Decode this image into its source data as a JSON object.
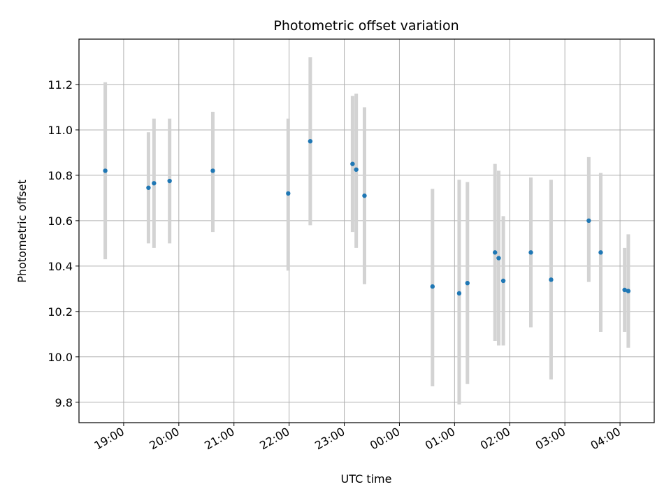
{
  "chart_data": {
    "type": "scatter",
    "title": "Photometric offset variation",
    "xlabel": "UTC time",
    "ylabel": "Photometric offset",
    "x_ticks": [
      "19:00",
      "20:00",
      "21:00",
      "22:00",
      "23:00",
      "00:00",
      "01:00",
      "02:00",
      "03:00",
      "04:00"
    ],
    "x_tick_hours": [
      19,
      20,
      21,
      22,
      23,
      24,
      25,
      26,
      27,
      28
    ],
    "xlim": [
      18.19,
      28.62
    ],
    "y_ticks": [
      "9.8",
      "10.0",
      "10.2",
      "10.4",
      "10.6",
      "10.8",
      "11.0",
      "11.2"
    ],
    "y_tick_values": [
      9.8,
      10.0,
      10.2,
      10.4,
      10.6,
      10.8,
      11.0,
      11.2
    ],
    "ylim": [
      9.71,
      11.4
    ],
    "grid": true,
    "marker_color": "#1f77b4",
    "errorbar_color": "#d3d3d3",
    "points": [
      {
        "x": "18:40",
        "y": 10.82,
        "low": 10.43,
        "high": 11.21
      },
      {
        "x": "19:27",
        "y": 10.745,
        "low": 10.5,
        "high": 10.99
      },
      {
        "x": "19:33",
        "y": 10.765,
        "low": 10.48,
        "high": 11.05
      },
      {
        "x": "19:50",
        "y": 10.775,
        "low": 10.5,
        "high": 11.05
      },
      {
        "x": "20:37",
        "y": 10.82,
        "low": 10.55,
        "high": 11.08
      },
      {
        "x": "21:59",
        "y": 10.72,
        "low": 10.38,
        "high": 11.05
      },
      {
        "x": "22:23",
        "y": 10.95,
        "low": 10.58,
        "high": 11.32
      },
      {
        "x": "23:09",
        "y": 10.85,
        "low": 10.55,
        "high": 11.15
      },
      {
        "x": "23:13",
        "y": 10.825,
        "low": 10.48,
        "high": 11.16
      },
      {
        "x": "23:22",
        "y": 10.71,
        "low": 10.32,
        "high": 11.1
      },
      {
        "x": "00:36",
        "y": 10.31,
        "low": 9.87,
        "high": 10.74
      },
      {
        "x": "01:05",
        "y": 10.28,
        "low": 9.79,
        "high": 10.78
      },
      {
        "x": "01:14",
        "y": 10.325,
        "low": 9.88,
        "high": 10.77
      },
      {
        "x": "01:44",
        "y": 10.46,
        "low": 10.07,
        "high": 10.85
      },
      {
        "x": "01:48",
        "y": 10.435,
        "low": 10.05,
        "high": 10.82
      },
      {
        "x": "01:53",
        "y": 10.335,
        "low": 10.05,
        "high": 10.62
      },
      {
        "x": "02:23",
        "y": 10.46,
        "low": 10.13,
        "high": 10.79
      },
      {
        "x": "02:45",
        "y": 10.34,
        "low": 9.9,
        "high": 10.78
      },
      {
        "x": "03:26",
        "y": 10.6,
        "low": 10.33,
        "high": 10.88
      },
      {
        "x": "03:39",
        "y": 10.46,
        "low": 10.11,
        "high": 10.81
      },
      {
        "x": "04:05",
        "y": 10.295,
        "low": 10.11,
        "high": 10.48
      },
      {
        "x": "04:09",
        "y": 10.29,
        "low": 10.04,
        "high": 10.54
      }
    ]
  }
}
